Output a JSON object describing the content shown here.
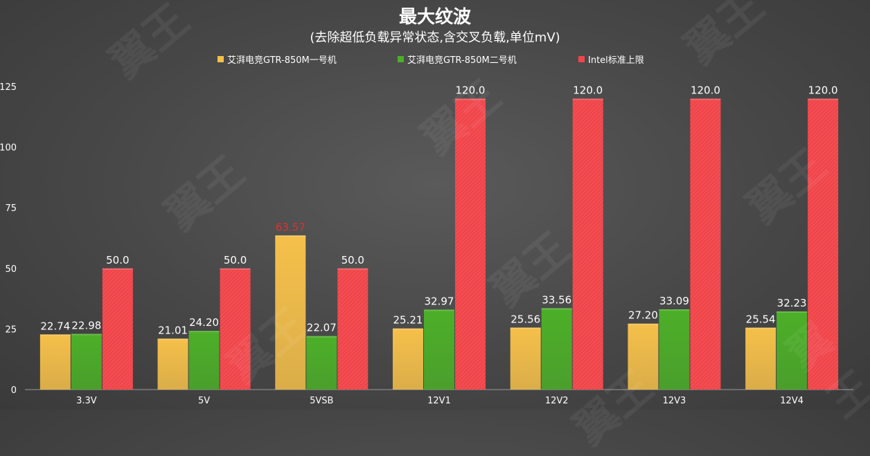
{
  "chart_data": {
    "type": "bar",
    "title": "最大纹波",
    "subtitle": "(去除超低负载异常状态,含交叉负载,单位mV)",
    "categories": [
      "3.3V",
      "5V",
      "5VSB",
      "12V1",
      "12V2",
      "12V3",
      "12V4"
    ],
    "series": [
      {
        "name": "艾湃电竞GTR-850M一号机",
        "color": "#f5c04a",
        "values": [
          22.74,
          21.01,
          63.57,
          25.21,
          25.56,
          27.2,
          25.54
        ],
        "labels": [
          "22.74",
          "21.01",
          "63.57",
          "25.21",
          "25.56",
          "27.20",
          "25.54"
        ]
      },
      {
        "name": "艾湃电竞GTR-850M二号机",
        "color": "#4caf28",
        "values": [
          22.98,
          24.2,
          22.07,
          32.97,
          33.56,
          33.09,
          32.23
        ],
        "labels": [
          "22.98",
          "24.20",
          "22.07",
          "32.97",
          "33.56",
          "33.09",
          "32.23"
        ]
      },
      {
        "name": "Intel标准上限",
        "color": "#f0454a",
        "values": [
          50.0,
          50.0,
          50.0,
          120.0,
          120.0,
          120.0,
          120.0
        ],
        "labels": [
          "50.0",
          "50.0",
          "50.0",
          "120.0",
          "120.0",
          "120.0",
          "120.0"
        ]
      }
    ],
    "yticks": [
      0,
      25,
      50,
      75,
      100,
      125
    ],
    "ylim": [
      0,
      125
    ],
    "grid": false,
    "legend_position": "top",
    "highlight_label_color": "#e03030",
    "highlight": {
      "series": 0,
      "category": 2
    }
  },
  "watermark_text": "翼王"
}
